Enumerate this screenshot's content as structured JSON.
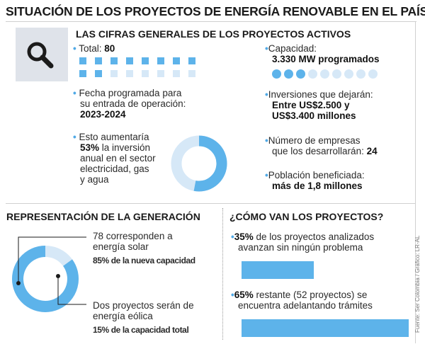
{
  "title": "SITUACIÓN DE LOS PROYECTOS DE ENERGÍA RENOVABLE EN EL PAÍS",
  "top": {
    "heading": "LAS CIFRAS GENERALES DE LOS PROYECTOS ACTIVOS",
    "icon": "search-icon",
    "total": {
      "label": "Total: ",
      "value": "80",
      "filled": 10,
      "cells": 16
    },
    "fecha": {
      "line1": "Fecha programada para",
      "line2": "su entrada de operación:",
      "value": "2023-2024"
    },
    "inversion": {
      "line1": "Esto aumentaría",
      "pct": "53%",
      "line2_rest": " la inversión",
      "line3": "anual en el sector",
      "line4": "electricidad, gas",
      "line5": "y agua",
      "fraction": 0.53
    },
    "capacidad": {
      "label": "Capacidad:",
      "value": "3.330 MW programados",
      "dots_filled": 3,
      "dots_total": 9
    },
    "inversiones": {
      "label": "Inversiones que dejarán:",
      "value1": "Entre US$2.500 y",
      "value2": "US$3.400 millones"
    },
    "empresas": {
      "line1": "Número de empresas",
      "line2": "que los desarrollarán: ",
      "value": "24"
    },
    "poblacion": {
      "label": "Población beneficiada:",
      "value": "más de 1,8 millones"
    }
  },
  "generacion": {
    "heading": "REPRESENTACIÓN DE LA GENERACIÓN",
    "solar": {
      "line1": "78 corresponden a",
      "line2": "energía solar",
      "caption": "85% de la nueva capacidad",
      "fraction": 0.85
    },
    "eolica": {
      "line1": "Dos proyectos serán de",
      "line2": "energía eólica",
      "caption": "15% de la capacidad total",
      "fraction": 0.15
    }
  },
  "proyectos": {
    "heading": "¿CÓMO VAN LOS PROYECTOS?",
    "item1": {
      "pct": "35%",
      "line1_rest": " de los proyectos analizados",
      "line2": "avanzan sin ningún problema",
      "fraction": 0.35
    },
    "item2": {
      "pct": "65%",
      "line1_rest": " restante (52 proyectos) se",
      "line2": "encuentra adelantando trámites",
      "fraction": 0.65
    }
  },
  "source": "Fuente: Ser Colombia / Gráfico: LR-AL",
  "colors": {
    "blue": "#5db3ea",
    "light": "#d6e8f7",
    "icon_bg": "#dfe3ea"
  }
}
